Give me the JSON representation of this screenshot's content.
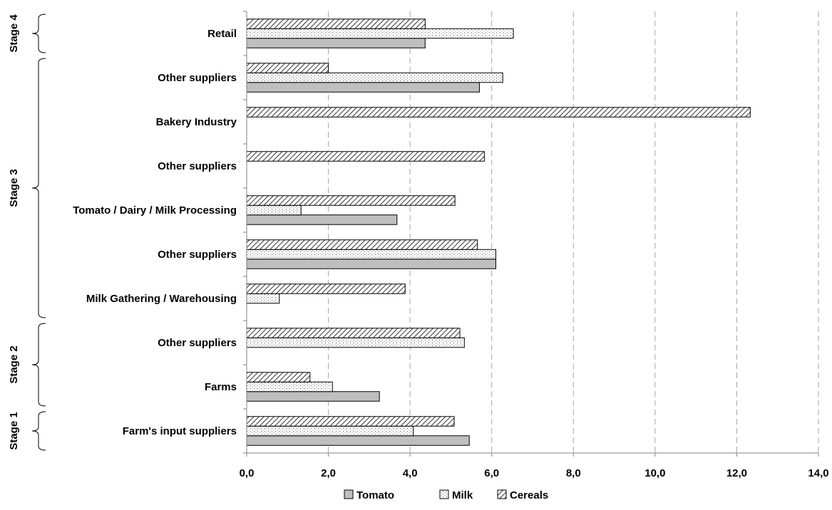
{
  "chart_data": {
    "type": "bar",
    "orientation": "horizontal",
    "categories": [
      "Farm's input suppliers",
      "Farms",
      "Other suppliers",
      "Milk Gathering / Warehousing",
      "Other suppliers",
      "Tomato / Dairy / Milk Processing",
      "Other suppliers",
      "Bakery Industry",
      "Other suppliers",
      "Retail"
    ],
    "series": [
      {
        "name": "Tomato",
        "pattern": "solid-gray",
        "values": [
          5.45,
          3.25,
          null,
          null,
          6.1,
          3.68,
          null,
          null,
          5.7,
          4.37
        ]
      },
      {
        "name": "Milk",
        "pattern": "dotted",
        "values": [
          4.08,
          2.1,
          5.33,
          0.8,
          6.1,
          1.33,
          null,
          null,
          6.27,
          6.53
        ]
      },
      {
        "name": "Cereals",
        "pattern": "hatched",
        "values": [
          5.08,
          1.55,
          5.22,
          3.88,
          5.65,
          5.1,
          5.82,
          12.33,
          2.0,
          4.37
        ]
      }
    ],
    "stages": [
      {
        "label": "Stage 1",
        "from_category": 0,
        "to_category": 0
      },
      {
        "label": "Stage 2",
        "from_category": 1,
        "to_category": 2
      },
      {
        "label": "Stage 3",
        "from_category": 3,
        "to_category": 8
      },
      {
        "label": "Stage 4",
        "from_category": 9,
        "to_category": 9
      }
    ],
    "xlim": [
      0,
      14
    ],
    "xticks": [
      "0,0",
      "2,0",
      "4,0",
      "6,0",
      "8,0",
      "10,0",
      "12,0",
      "14,0"
    ],
    "grid": "vertical-dashed",
    "legend_position": "bottom",
    "colors": {
      "tomato_fill": "#bfbfbf",
      "bar_stroke": "#000000",
      "grid": "#a6a6a6",
      "axis": "#808080"
    }
  }
}
